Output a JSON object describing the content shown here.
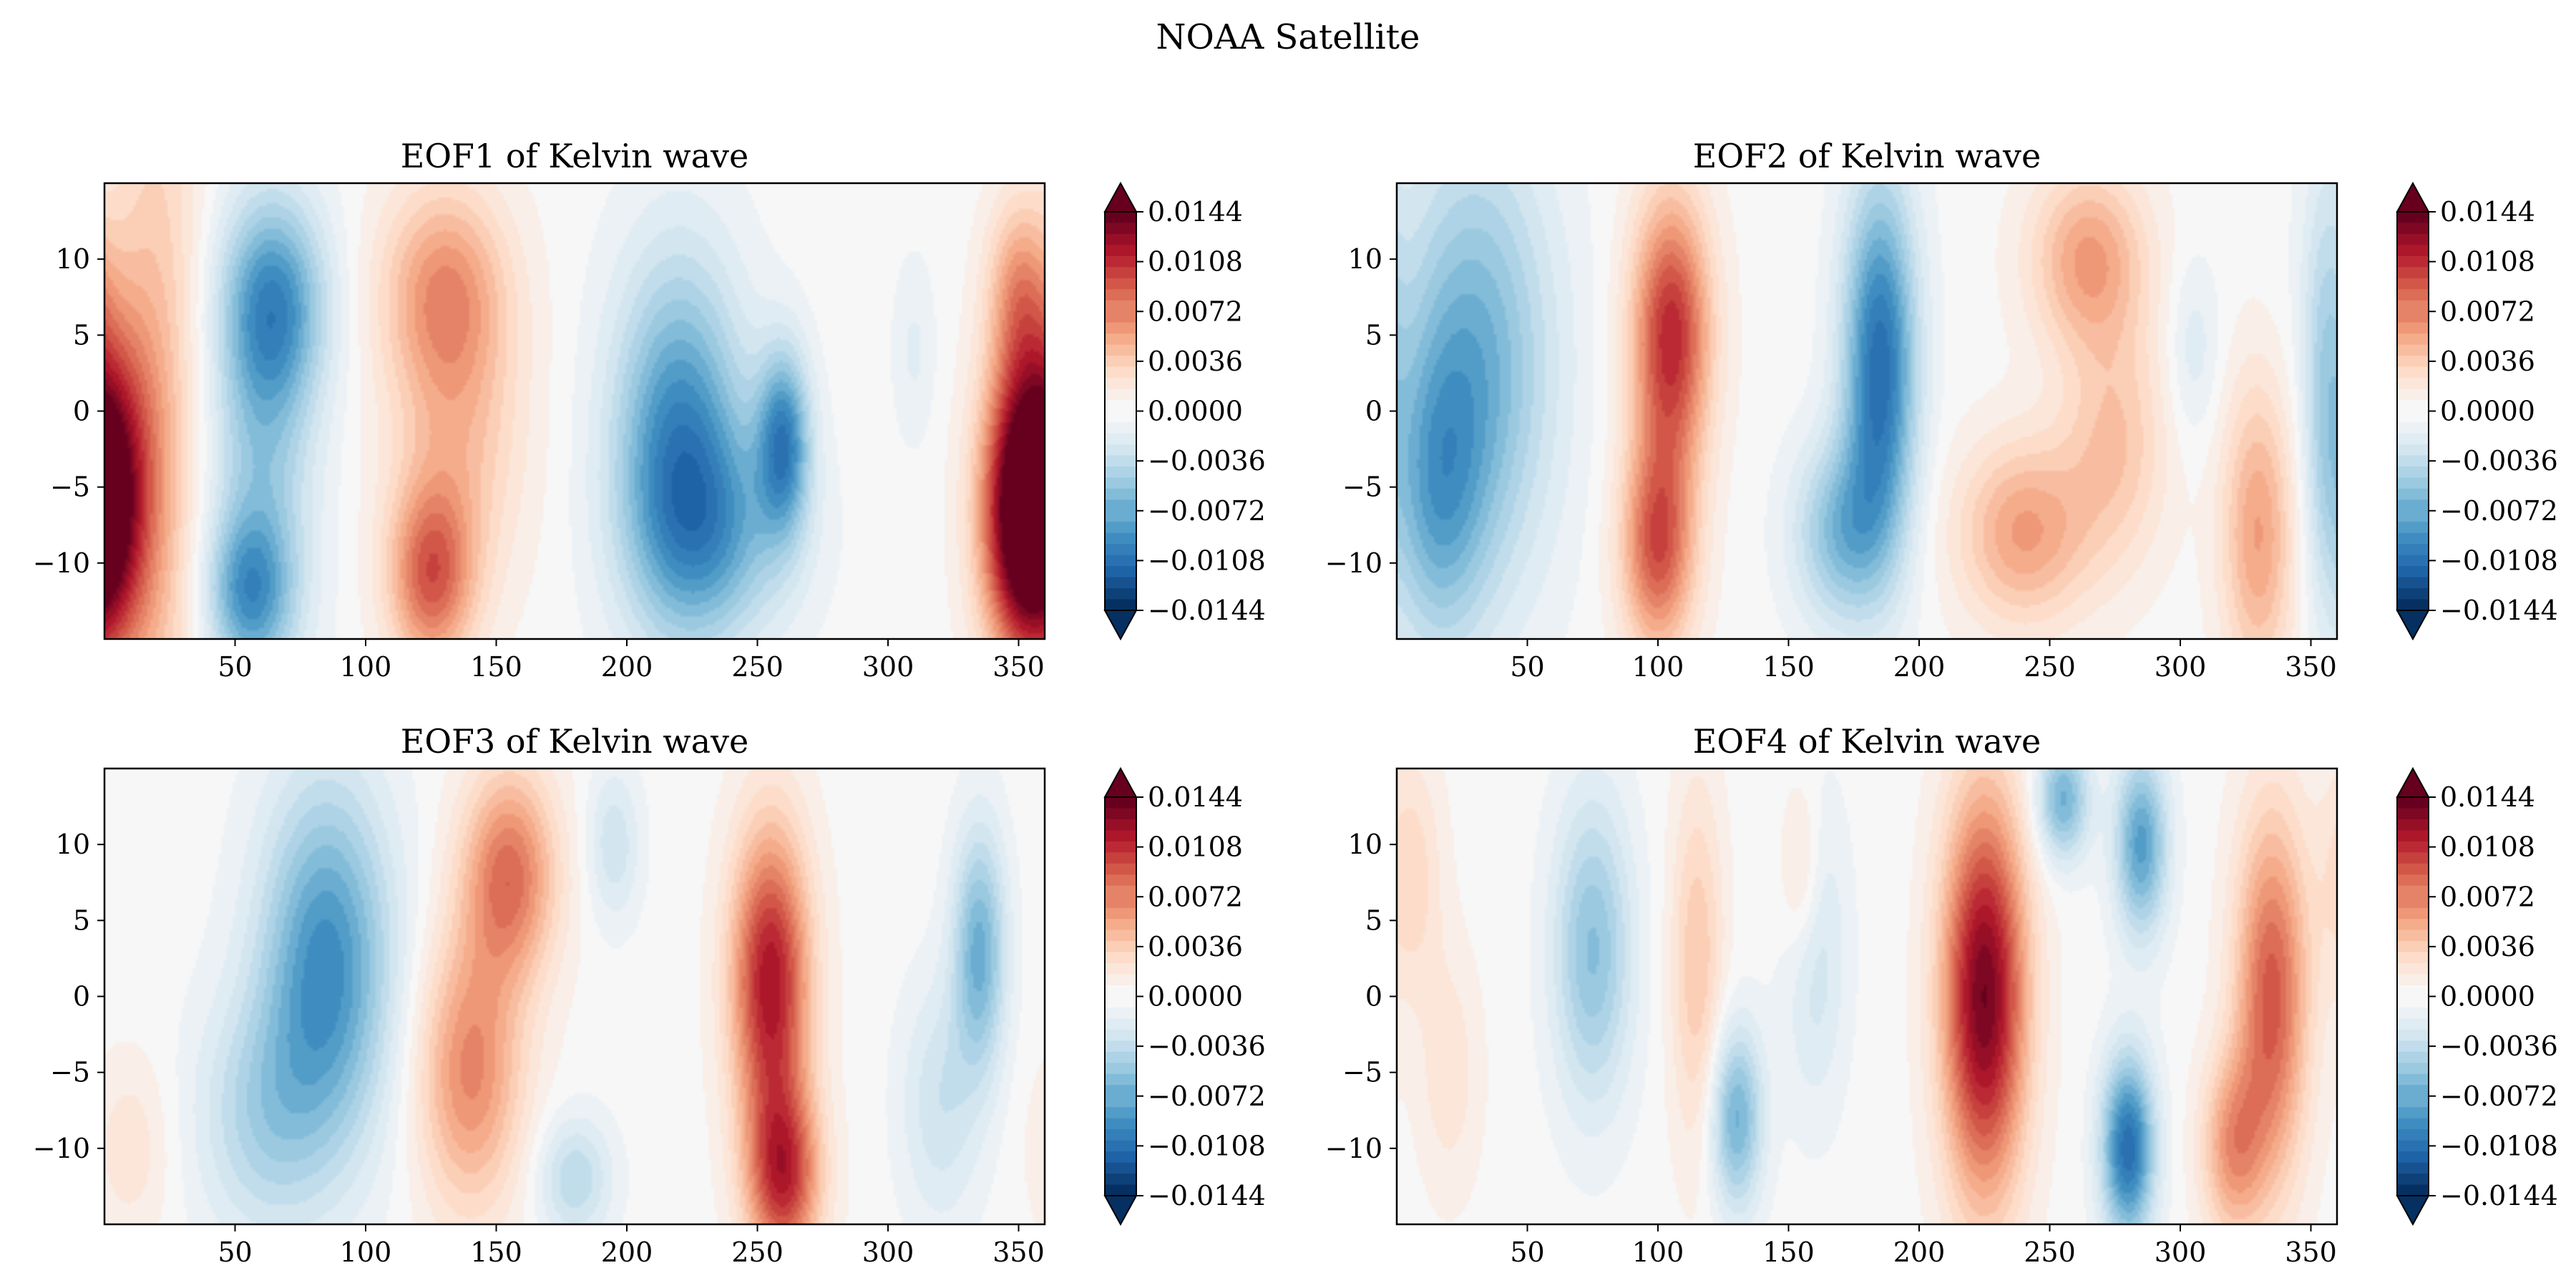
{
  "figure": {
    "suptitle": "NOAA Satellite"
  },
  "colormap": {
    "name": "RdBu_r",
    "stops": [
      "#053061",
      "#2166ac",
      "#4393c3",
      "#92c5de",
      "#d1e5f0",
      "#f7f7f7",
      "#fddbc7",
      "#f4a582",
      "#d6604d",
      "#b2182b",
      "#67001f"
    ]
  },
  "chart_data": [
    {
      "type": "heatmap",
      "title": "EOF1 of Kelvin wave",
      "xlim": [
        0,
        360
      ],
      "ylim": [
        -15,
        15
      ],
      "xticks": [
        50,
        100,
        150,
        200,
        250,
        300,
        350
      ],
      "yticks": [
        10,
        5,
        0,
        -5,
        -10
      ],
      "colorbar": {
        "ticks": [
          0.0144,
          0.0108,
          0.0072,
          0.0036,
          0.0,
          -0.0036,
          -0.0072,
          -0.0108,
          -0.0144
        ],
        "tick_labels": [
          "0.0144",
          "0.0108",
          "0.0072",
          "0.0036",
          "0.0000",
          "−0.0036",
          "−0.0072",
          "−0.0108",
          "−0.0144"
        ],
        "extend": "both"
      },
      "features": [
        {
          "lon": 0,
          "lat": -5,
          "value": 0.011,
          "lon_width": 18,
          "lat_width": 11
        },
        {
          "lon": 20,
          "lat": 0,
          "value": 0.004,
          "lon_width": 18,
          "lat_width": 30
        },
        {
          "lon": 65,
          "lat": 7,
          "value": -0.008,
          "lon_width": 20,
          "lat_width": 7
        },
        {
          "lon": 60,
          "lat": -5,
          "value": -0.005,
          "lon_width": 20,
          "lat_width": 14
        },
        {
          "lon": 55,
          "lat": -12,
          "value": -0.006,
          "lon_width": 16,
          "lat_width": 5
        },
        {
          "lon": 130,
          "lat": 8,
          "value": 0.006,
          "lon_width": 24,
          "lat_width": 7
        },
        {
          "lon": 135,
          "lat": -2,
          "value": 0.004,
          "lon_width": 25,
          "lat_width": 10
        },
        {
          "lon": 125,
          "lat": -11,
          "value": 0.008,
          "lon_width": 16,
          "lat_width": 6
        },
        {
          "lon": 220,
          "lat": -2,
          "value": -0.009,
          "lon_width": 25,
          "lat_width": 12
        },
        {
          "lon": 260,
          "lat": -2,
          "value": -0.009,
          "lon_width": 10,
          "lat_width": 6
        },
        {
          "lon": 235,
          "lat": -8,
          "value": -0.005,
          "lon_width": 30,
          "lat_width": 7
        },
        {
          "lon": 310,
          "lat": 4,
          "value": -0.0015,
          "lon_width": 8,
          "lat_width": 6
        },
        {
          "lon": 350,
          "lat": 8,
          "value": 0.005,
          "lon_width": 12,
          "lat_width": 6
        },
        {
          "lon": 352,
          "lat": -7,
          "value": 0.013,
          "lon_width": 16,
          "lat_width": 9
        }
      ]
    },
    {
      "type": "heatmap",
      "title": "EOF2 of Kelvin wave",
      "xlim": [
        0,
        360
      ],
      "ylim": [
        -15,
        15
      ],
      "xticks": [
        50,
        100,
        150,
        200,
        250,
        300,
        350
      ],
      "yticks": [
        10,
        5,
        0,
        -5,
        -10
      ],
      "colorbar": {
        "ticks": [
          0.0144,
          0.0108,
          0.0072,
          0.0036,
          0.0,
          -0.0036,
          -0.0072,
          -0.0108,
          -0.0144
        ],
        "tick_labels": [
          "0.0144",
          "0.0108",
          "0.0072",
          "0.0036",
          "0.0000",
          "−0.0036",
          "−0.0072",
          "−0.0108",
          "−0.0144"
        ],
        "extend": "both"
      },
      "features": [
        {
          "lon": 30,
          "lat": 3,
          "value": -0.007,
          "lon_width": 30,
          "lat_width": 15
        },
        {
          "lon": 15,
          "lat": -6,
          "value": -0.005,
          "lon_width": 18,
          "lat_width": 10
        },
        {
          "lon": 105,
          "lat": 5,
          "value": 0.011,
          "lon_width": 15,
          "lat_width": 9
        },
        {
          "lon": 100,
          "lat": -9,
          "value": 0.009,
          "lon_width": 14,
          "lat_width": 7
        },
        {
          "lon": 185,
          "lat": 3,
          "value": -0.011,
          "lon_width": 14,
          "lat_width": 12
        },
        {
          "lon": 170,
          "lat": -8,
          "value": -0.006,
          "lon_width": 18,
          "lat_width": 6
        },
        {
          "lon": 265,
          "lat": 10,
          "value": 0.006,
          "lon_width": 22,
          "lat_width": 6
        },
        {
          "lon": 240,
          "lat": -8,
          "value": 0.006,
          "lon_width": 25,
          "lat_width": 6
        },
        {
          "lon": 275,
          "lat": -2,
          "value": 0.004,
          "lon_width": 20,
          "lat_width": 8
        },
        {
          "lon": 330,
          "lat": -8,
          "value": 0.006,
          "lon_width": 14,
          "lat_width": 10
        },
        {
          "lon": 305,
          "lat": 4,
          "value": -0.002,
          "lon_width": 10,
          "lat_width": 6
        },
        {
          "lon": 355,
          "lat": 2,
          "value": -0.003,
          "lon_width": 8,
          "lat_width": 14
        }
      ]
    },
    {
      "type": "heatmap",
      "title": "EOF3 of Kelvin wave",
      "xlim": [
        0,
        360
      ],
      "ylim": [
        -15,
        15
      ],
      "xticks": [
        50,
        100,
        150,
        200,
        250,
        300,
        350
      ],
      "yticks": [
        10,
        5,
        0,
        -5,
        -10
      ],
      "colorbar": {
        "ticks": [
          0.0144,
          0.0108,
          0.0072,
          0.0036,
          0.0,
          -0.0036,
          -0.0072,
          -0.0108,
          -0.0144
        ],
        "tick_labels": [
          "0.0144",
          "0.0108",
          "0.0072",
          "0.0036",
          "0.0000",
          "−0.0036",
          "−0.0072",
          "−0.0108",
          "−0.0144"
        ],
        "extend": "both"
      },
      "features": [
        {
          "lon": 85,
          "lat": 2,
          "value": -0.009,
          "lon_width": 25,
          "lat_width": 12
        },
        {
          "lon": 60,
          "lat": -8,
          "value": -0.004,
          "lon_width": 25,
          "lat_width": 8
        },
        {
          "lon": 155,
          "lat": 8,
          "value": 0.008,
          "lon_width": 18,
          "lat_width": 7
        },
        {
          "lon": 140,
          "lat": -5,
          "value": 0.007,
          "lon_width": 20,
          "lat_width": 9
        },
        {
          "lon": 195,
          "lat": 10,
          "value": -0.003,
          "lon_width": 10,
          "lat_width": 5
        },
        {
          "lon": 180,
          "lat": -12,
          "value": -0.004,
          "lon_width": 14,
          "lat_width": 4
        },
        {
          "lon": 255,
          "lat": 1,
          "value": 0.012,
          "lon_width": 15,
          "lat_width": 10
        },
        {
          "lon": 260,
          "lat": -12,
          "value": 0.01,
          "lon_width": 14,
          "lat_width": 6
        },
        {
          "lon": 335,
          "lat": 3,
          "value": -0.007,
          "lon_width": 10,
          "lat_width": 8
        },
        {
          "lon": 320,
          "lat": -7,
          "value": -0.003,
          "lon_width": 15,
          "lat_width": 8
        },
        {
          "lon": 10,
          "lat": -10,
          "value": 0.002,
          "lon_width": 15,
          "lat_width": 6
        }
      ]
    },
    {
      "type": "heatmap",
      "title": "EOF4 of Kelvin wave",
      "xlim": [
        0,
        360
      ],
      "ylim": [
        -15,
        15
      ],
      "xticks": [
        50,
        100,
        150,
        200,
        250,
        300,
        350
      ],
      "yticks": [
        10,
        5,
        0,
        -5,
        -10
      ],
      "colorbar": {
        "ticks": [
          0.0144,
          0.0108,
          0.0072,
          0.0036,
          0.0,
          -0.0036,
          -0.0072,
          -0.0108,
          -0.0144
        ],
        "tick_labels": [
          "0.0144",
          "0.0108",
          "0.0072",
          "0.0036",
          "0.0000",
          "−0.0036",
          "−0.0072",
          "−0.0108",
          "−0.0144"
        ],
        "extend": "both"
      },
      "features": [
        {
          "lon": 5,
          "lat": 8,
          "value": 0.003,
          "lon_width": 12,
          "lat_width": 8
        },
        {
          "lon": 75,
          "lat": 3,
          "value": -0.006,
          "lon_width": 15,
          "lat_width": 10
        },
        {
          "lon": 130,
          "lat": -8,
          "value": -0.007,
          "lon_width": 10,
          "lat_width": 6
        },
        {
          "lon": 115,
          "lat": 2,
          "value": 0.004,
          "lon_width": 10,
          "lat_width": 12
        },
        {
          "lon": 160,
          "lat": 3,
          "value": -0.003,
          "lon_width": 12,
          "lat_width": 10
        },
        {
          "lon": 155,
          "lat": 8,
          "value": 0.003,
          "lon_width": 8,
          "lat_width": 6
        },
        {
          "lon": 225,
          "lat": 0,
          "value": 0.014,
          "lon_width": 16,
          "lat_width": 13
        },
        {
          "lon": 255,
          "lat": 13,
          "value": -0.007,
          "lon_width": 10,
          "lat_width": 4
        },
        {
          "lon": 285,
          "lat": 10,
          "value": -0.008,
          "lon_width": 10,
          "lat_width": 6
        },
        {
          "lon": 280,
          "lat": -10,
          "value": -0.011,
          "lon_width": 10,
          "lat_width": 6
        },
        {
          "lon": 335,
          "lat": 0,
          "value": 0.009,
          "lon_width": 14,
          "lat_width": 12
        },
        {
          "lon": 320,
          "lat": -10,
          "value": 0.006,
          "lon_width": 12,
          "lat_width": 6
        },
        {
          "lon": 20,
          "lat": -5,
          "value": 0.002,
          "lon_width": 12,
          "lat_width": 8
        }
      ]
    }
  ]
}
